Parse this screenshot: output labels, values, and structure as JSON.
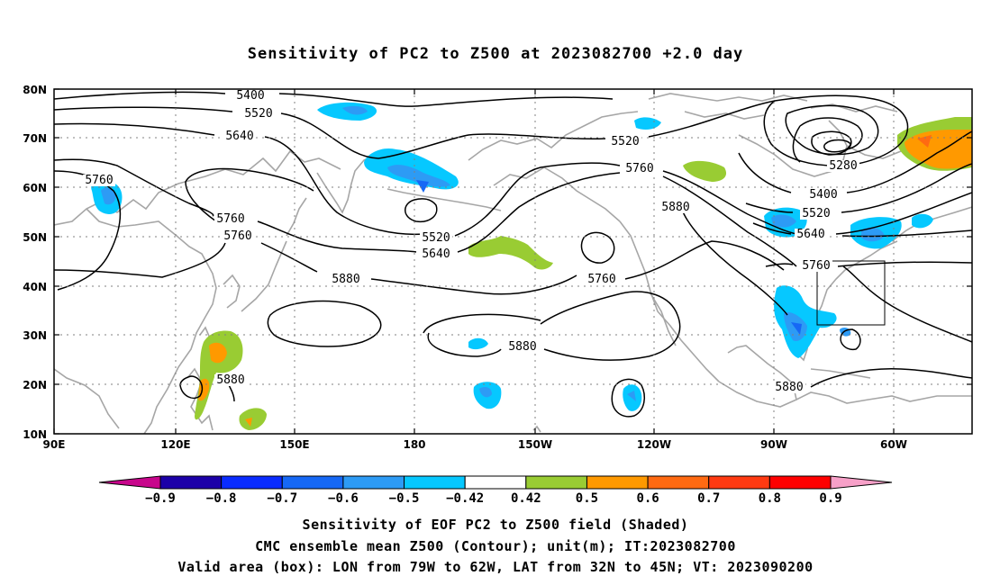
{
  "title": "Sensitivity of PC2 to Z500 at 2023082700 +2.0 day",
  "lat_labels": [
    "80N",
    "70N",
    "60N",
    "50N",
    "40N",
    "30N",
    "20N",
    "10N"
  ],
  "lon_labels": [
    "90E",
    "120E",
    "150E",
    "180",
    "150W",
    "120W",
    "90W",
    "60W"
  ],
  "contour_labels": {
    "c5400a": "5400",
    "c5520a": "5520",
    "c5640a": "5640",
    "c5760a": "5760",
    "c5760b": "5760",
    "c5760c": "5760",
    "c5880a": "5880",
    "c5520b": "5520",
    "c5640b": "5640",
    "c5760d": "5760",
    "c5520c": "5520",
    "c5760e": "5760",
    "c5880b": "5880",
    "c5880c": "5880",
    "c5880d": "5880",
    "c5280": "5280",
    "c5400b": "5400",
    "c5520d": "5520",
    "c5640c": "5640",
    "c5760f": "5760",
    "c5880e": "5880"
  },
  "colorbar": {
    "labels": [
      "−0.9",
      "−0.8",
      "−0.7",
      "−0.6",
      "−0.5",
      "−0.42",
      "0.42",
      "0.5",
      "0.6",
      "0.7",
      "0.8",
      "0.9"
    ],
    "colors": [
      "#1c00a8",
      "#0a2cff",
      "#1668f5",
      "#2d9bf5",
      "#06c8ff",
      "#ffffff",
      "#99cc33",
      "#ff9900",
      "#ff6a12",
      "#ff3a12",
      "#ff0000"
    ],
    "low_end_color": "#c8068c",
    "high_end_color": "#f7a0c8"
  },
  "valid_box": {
    "lon_west": -79,
    "lon_east": -62,
    "lat_south": 32,
    "lat_north": 45
  },
  "captions": {
    "line1": "Sensitivity of EOF PC2 to Z500 field (Shaded)",
    "line2": "CMC ensemble mean Z500 (Contour); unit(m); IT:2023082700",
    "line3": "Valid area (box): LON from 79W to 62W, LAT from 32N to 45N; VT: 2023090200"
  }
}
